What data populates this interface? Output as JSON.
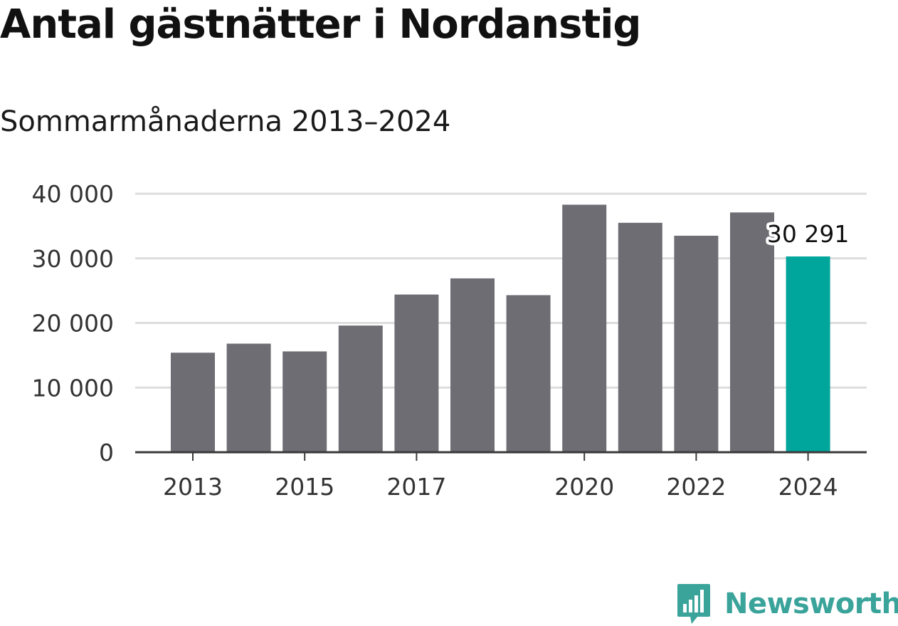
{
  "header": {
    "title": "Antal gästnätter i Nordanstig",
    "subtitle": "Sommarmånaderna 2013–2024"
  },
  "chart_data": {
    "type": "bar",
    "title": "Antal gästnätter i Nordanstig",
    "subtitle": "Sommarmånaderna 2013–2024",
    "categories": [
      "2013",
      "2014",
      "2015",
      "2016",
      "2017",
      "2018",
      "2019",
      "2020",
      "2021",
      "2022",
      "2023",
      "2024"
    ],
    "values": [
      15400,
      16800,
      15600,
      19600,
      24400,
      26900,
      24300,
      38300,
      35500,
      33500,
      37100,
      30291
    ],
    "xtick_labels": [
      "2013",
      "2015",
      "2017",
      "2020",
      "2022",
      "2024"
    ],
    "ytick_labels": [
      "0",
      "10 000",
      "20 000",
      "30 000",
      "40 000"
    ],
    "ylim": [
      0,
      40000
    ],
    "grid": true,
    "highlight_index": 11,
    "highlight_label": "30 291",
    "colors": {
      "bar": "#6e6d74",
      "highlight": "#00a59b",
      "grid": "#dddddd",
      "axis": "#3a3a3a"
    }
  },
  "footer": {
    "logo_text": "Newsworthy",
    "logo_color": "#3aa39a",
    "logo_icon": "bar-chart-badge-icon"
  }
}
